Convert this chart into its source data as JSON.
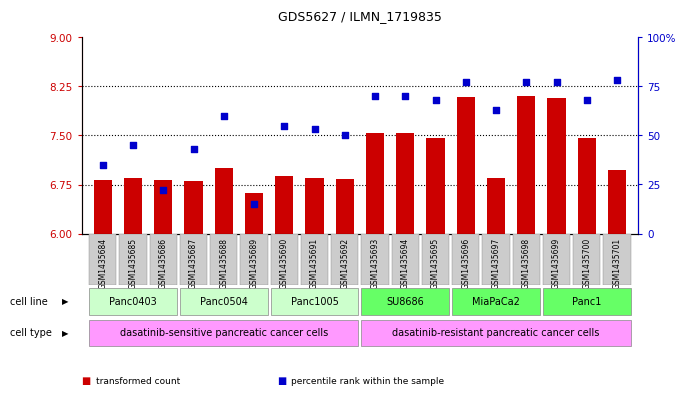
{
  "title": "GDS5627 / ILMN_1719835",
  "samples": [
    "GSM1435684",
    "GSM1435685",
    "GSM1435686",
    "GSM1435687",
    "GSM1435688",
    "GSM1435689",
    "GSM1435690",
    "GSM1435691",
    "GSM1435692",
    "GSM1435693",
    "GSM1435694",
    "GSM1435695",
    "GSM1435696",
    "GSM1435697",
    "GSM1435698",
    "GSM1435699",
    "GSM1435700",
    "GSM1435701"
  ],
  "transformed_count": [
    6.82,
    6.85,
    6.82,
    6.8,
    7.0,
    6.62,
    6.88,
    6.85,
    6.83,
    7.53,
    7.53,
    7.46,
    8.08,
    6.85,
    8.1,
    8.07,
    7.46,
    6.97
  ],
  "percentile_rank": [
    35,
    45,
    22,
    43,
    60,
    15,
    55,
    53,
    50,
    70,
    70,
    68,
    77,
    63,
    77,
    77,
    68,
    78
  ],
  "ymin": 6,
  "ymax": 9,
  "yticks_left": [
    6,
    6.75,
    7.5,
    8.25,
    9
  ],
  "yticks_right": [
    0,
    25,
    50,
    75,
    100
  ],
  "bar_color": "#cc0000",
  "dot_color": "#0000cc",
  "bar_width": 0.6,
  "cell_lines": [
    {
      "label": "Panc0403",
      "start": 0,
      "end": 2,
      "color": "#ccffcc"
    },
    {
      "label": "Panc0504",
      "start": 3,
      "end": 5,
      "color": "#ccffcc"
    },
    {
      "label": "Panc1005",
      "start": 6,
      "end": 8,
      "color": "#ccffcc"
    },
    {
      "label": "SU8686",
      "start": 9,
      "end": 11,
      "color": "#66ff66"
    },
    {
      "label": "MiaPaCa2",
      "start": 12,
      "end": 14,
      "color": "#66ff66"
    },
    {
      "label": "Panc1",
      "start": 15,
      "end": 17,
      "color": "#66ff66"
    }
  ],
  "cell_types": [
    {
      "label": "dasatinib-sensitive pancreatic cancer cells",
      "start": 0,
      "end": 8,
      "color": "#ff99ff"
    },
    {
      "label": "dasatinib-resistant pancreatic cancer cells",
      "start": 9,
      "end": 17,
      "color": "#ff99ff"
    }
  ],
  "legend_items": [
    {
      "label": "transformed count",
      "color": "#cc0000"
    },
    {
      "label": "percentile rank within the sample",
      "color": "#0000cc"
    }
  ],
  "hlines": [
    6.75,
    7.5,
    8.25
  ],
  "cell_line_label": "cell line",
  "cell_type_label": "cell type"
}
